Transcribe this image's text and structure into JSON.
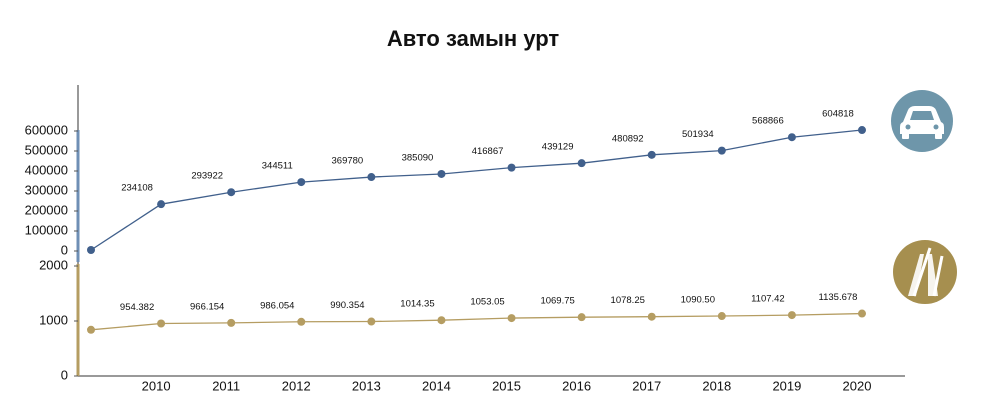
{
  "chart_data": [
    {
      "type": "line",
      "title": "Авто замын урт",
      "series": [
        {
          "color": "#41608c",
          "values": [
            5000,
            234108,
            293922,
            344511,
            369780,
            385090,
            416867,
            439129,
            480892,
            501934,
            568866,
            604818
          ]
        }
      ],
      "ylim": [
        0,
        600000
      ],
      "yticks": [
        0,
        100000,
        200000,
        300000,
        400000,
        500000,
        600000
      ]
    },
    {
      "type": "line",
      "categories": [
        null,
        "2010",
        "2011",
        "2012",
        "2013",
        "2014",
        "2015",
        "2016",
        "2017",
        "2018",
        "2019",
        "2020"
      ],
      "series": [
        {
          "color": "#b59d62",
          "values": [
            840,
            954.382,
            966.154,
            986.054,
            990.354,
            1014.35,
            1053.05,
            1069.75,
            1078.25,
            1090.5,
            1107.42,
            1135.678
          ],
          "value_labels": [
            null,
            "954.382",
            "966.154",
            "986.054",
            "990.354",
            "1014.35",
            "1053.05",
            "1069.75",
            "1078.25",
            "1090.50",
            "1107.42",
            "1135.678"
          ]
        }
      ],
      "ylim": [
        0,
        2000
      ],
      "yticks": [
        0,
        1000,
        2000
      ]
    }
  ]
}
